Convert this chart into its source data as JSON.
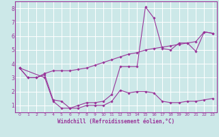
{
  "xlabel": "Windchill (Refroidissement éolien,°C)",
  "ylabel": "",
  "bg_color": "#cce8e8",
  "grid_color": "#ffffff",
  "line_color": "#993399",
  "marker_color": "#993399",
  "xlim": [
    -0.5,
    23.5
  ],
  "ylim": [
    0.5,
    8.5
  ],
  "xticks": [
    0,
    1,
    2,
    3,
    4,
    5,
    6,
    7,
    8,
    9,
    10,
    11,
    12,
    13,
    14,
    15,
    16,
    17,
    18,
    19,
    20,
    21,
    22,
    23
  ],
  "yticks": [
    1,
    2,
    3,
    4,
    5,
    6,
    7,
    8
  ],
  "series": [
    {
      "x": [
        0,
        1,
        2,
        3,
        4,
        5,
        6,
        7,
        8,
        9,
        10,
        11,
        12,
        13,
        14,
        15,
        16,
        17,
        18,
        19,
        20,
        21,
        22,
        23
      ],
      "y": [
        3.7,
        3.0,
        3.0,
        3.3,
        3.5,
        3.5,
        3.5,
        3.6,
        3.7,
        3.9,
        4.1,
        4.3,
        4.5,
        4.7,
        4.8,
        5.0,
        5.1,
        5.2,
        5.3,
        5.4,
        5.5,
        5.6,
        6.3,
        6.2
      ]
    },
    {
      "x": [
        0,
        1,
        2,
        3,
        4,
        5,
        6,
        7,
        8,
        9,
        10,
        11,
        12,
        13,
        14,
        15,
        16,
        17,
        18,
        19,
        20,
        21,
        22,
        23
      ],
      "y": [
        3.7,
        3.0,
        3.0,
        3.2,
        1.4,
        1.3,
        0.8,
        0.8,
        1.0,
        1.0,
        1.0,
        1.3,
        2.1,
        1.9,
        2.0,
        2.0,
        1.9,
        1.3,
        1.2,
        1.2,
        1.3,
        1.3,
        1.4,
        1.5
      ]
    },
    {
      "x": [
        0,
        3,
        4,
        5,
        6,
        7,
        8,
        9,
        10,
        11,
        12,
        13,
        14,
        15,
        16,
        17,
        18,
        19,
        20,
        21,
        22,
        23
      ],
      "y": [
        3.7,
        3.0,
        1.3,
        0.8,
        0.8,
        1.0,
        1.2,
        1.2,
        1.3,
        1.8,
        3.8,
        3.8,
        3.8,
        8.1,
        7.3,
        5.1,
        5.0,
        5.5,
        5.5,
        4.9,
        6.3,
        6.2
      ]
    }
  ]
}
